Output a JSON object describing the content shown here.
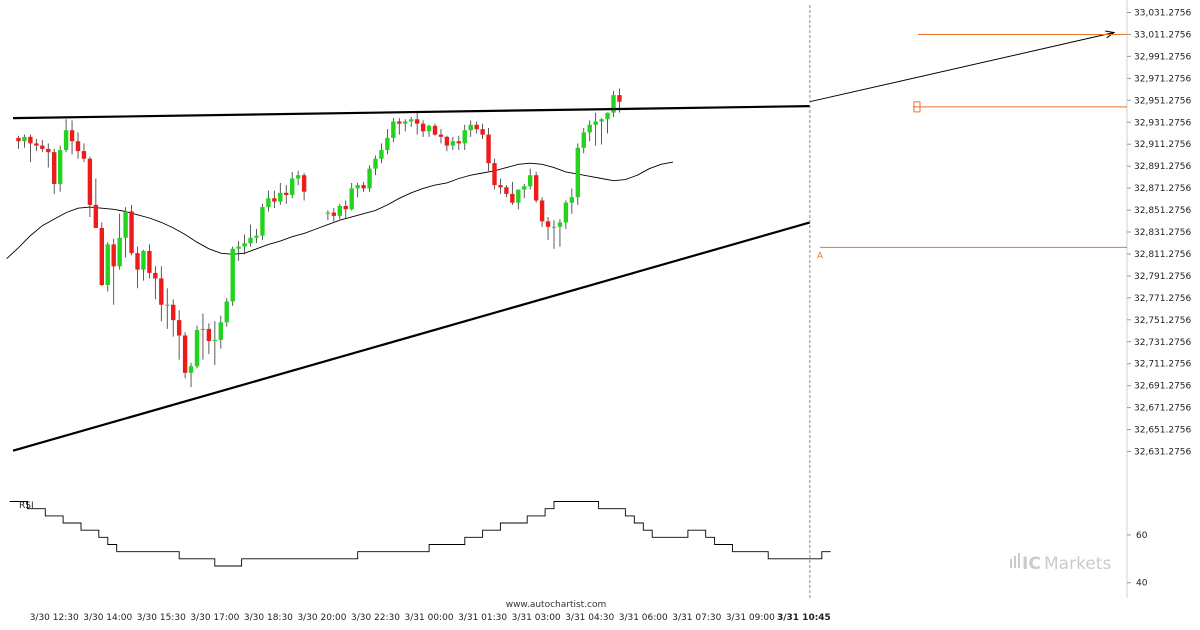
{
  "chart_data": {
    "type": "candlestick",
    "price_axis": {
      "ylim": [
        32616.2756,
        33036.2756
      ],
      "tick_labels": [
        "33,031.2756",
        "33,011.2756",
        "32,991.2756",
        "32,971.2756",
        "32,951.2756",
        "32,931.2756",
        "32,911.2756",
        "32,891.2756",
        "32,871.2756",
        "32,851.2756",
        "32,831.2756",
        "32,811.2756",
        "32,791.2756",
        "32,771.2756",
        "32,751.2756",
        "32,731.2756",
        "32,711.2756",
        "32,691.2756",
        "32,671.2756",
        "32,651.2756",
        "32,631.2756"
      ],
      "tick_values": [
        33031.2756,
        33011.2756,
        32991.2756,
        32971.2756,
        32951.2756,
        32931.2756,
        32911.2756,
        32891.2756,
        32871.2756,
        32851.2756,
        32831.2756,
        32811.2756,
        32791.2756,
        32771.2756,
        32751.2756,
        32731.2756,
        32711.2756,
        32691.2756,
        32671.2756,
        32651.2756,
        32631.2756
      ]
    },
    "time_axis": {
      "labels": [
        "3/30 12:30",
        "3/30 14:00",
        "3/30 15:30",
        "3/30 17:00",
        "3/30 18:30",
        "3/30 20:00",
        "3/30 22:30",
        "3/31 00:00",
        "3/31 01:30",
        "3/31 03:00",
        "3/31 04:30",
        "3/31 06:00",
        "3/31 07:30",
        "3/31 09:00",
        "3/31 10:45"
      ],
      "label_bar_index": [
        6,
        15,
        24,
        33,
        42,
        51,
        60,
        69,
        78,
        87,
        96,
        105,
        114,
        123,
        132
      ],
      "current_label_index": 14
    },
    "candles": [
      [
        32917,
        32919,
        32907,
        32914
      ],
      [
        32914,
        32920,
        32908,
        32918
      ],
      [
        32918,
        32920,
        32895,
        32912
      ],
      [
        32912,
        32916,
        32905,
        32910
      ],
      [
        32910,
        32915,
        32904,
        32907
      ],
      [
        32907,
        32912,
        32890,
        32904
      ],
      [
        32904,
        32907,
        32866,
        32875
      ],
      [
        32875,
        32910,
        32868,
        32906
      ],
      [
        32906,
        32934,
        32904,
        32924
      ],
      [
        32924,
        32933,
        32902,
        32914
      ],
      [
        32914,
        32922,
        32898,
        32905
      ],
      [
        32905,
        32912,
        32895,
        32898
      ],
      [
        32898,
        32900,
        32845,
        32856
      ],
      [
        32856,
        32880,
        32835,
        32835
      ],
      [
        32835,
        32840,
        32782,
        32783
      ],
      [
        32783,
        32822,
        32777,
        32820
      ],
      [
        32820,
        32825,
        32765,
        32800
      ],
      [
        32800,
        32848,
        32797,
        32826
      ],
      [
        32826,
        32854,
        32808,
        32850
      ],
      [
        32850,
        32856,
        32810,
        32812
      ],
      [
        32812,
        32818,
        32780,
        32797
      ],
      [
        32797,
        32815,
        32787,
        32814
      ],
      [
        32814,
        32820,
        32789,
        32794
      ],
      [
        32794,
        32800,
        32770,
        32789
      ],
      [
        32789,
        32800,
        32750,
        32765
      ],
      [
        32765,
        32780,
        32743,
        32765
      ],
      [
        32765,
        32770,
        32736,
        32751
      ],
      [
        32751,
        32760,
        32715,
        32737
      ],
      [
        32737,
        32740,
        32698,
        32703
      ],
      [
        32703,
        32712,
        32690,
        32709
      ],
      [
        32709,
        32746,
        32707,
        32742
      ],
      [
        32742,
        32757,
        32715,
        32743
      ],
      [
        32743,
        32748,
        32720,
        32732
      ],
      [
        32732,
        32750,
        32710,
        32733
      ],
      [
        32733,
        32755,
        32725,
        32749
      ],
      [
        32749,
        32771,
        32745,
        32768
      ],
      [
        32768,
        32818,
        32764,
        32816
      ],
      [
        32816,
        32823,
        32805,
        32818
      ],
      [
        32818,
        32829,
        32811,
        32821
      ],
      [
        32821,
        32838,
        32818,
        32826
      ],
      [
        32826,
        32834,
        32821,
        32828
      ],
      [
        32828,
        32857,
        32824,
        32854
      ],
      [
        32854,
        32869,
        32850,
        32862
      ],
      [
        32862,
        32869,
        32853,
        32859
      ],
      [
        32859,
        32876,
        32856,
        32867
      ],
      [
        32867,
        32874,
        32857,
        32865
      ],
      [
        32865,
        32886,
        32862,
        32880
      ],
      [
        32880,
        32887,
        32874,
        32883
      ],
      [
        32883,
        32885,
        32860,
        32868
      ],
      [
        32848,
        32851,
        32842,
        32849
      ],
      [
        32849,
        32853,
        32841,
        32846
      ],
      [
        32846,
        32857,
        32843,
        32855
      ],
      [
        32855,
        32860,
        32844,
        32852
      ],
      [
        32852,
        32876,
        32851,
        32871
      ],
      [
        32871,
        32876,
        32863,
        32874
      ],
      [
        32874,
        32877,
        32868,
        32871
      ],
      [
        32871,
        32892,
        32868,
        32889
      ],
      [
        32889,
        32901,
        32883,
        32898
      ],
      [
        32898,
        32912,
        32894,
        32906
      ],
      [
        32906,
        32925,
        32902,
        32917
      ],
      [
        32917,
        32935,
        32913,
        32932
      ],
      [
        32932,
        32935,
        32920,
        32930
      ],
      [
        32930,
        32934,
        32923,
        32932
      ],
      [
        32932,
        32936,
        32927,
        32934
      ],
      [
        32934,
        32940,
        32920,
        32930
      ],
      [
        32930,
        32933,
        32918,
        32923
      ],
      [
        32923,
        32929,
        32918,
        32928
      ],
      [
        32928,
        32930,
        32919,
        32920
      ],
      [
        32920,
        32925,
        32912,
        32918
      ],
      [
        32918,
        32919,
        32905,
        32910
      ],
      [
        32910,
        32918,
        32906,
        32914
      ],
      [
        32914,
        32919,
        32906,
        32912
      ],
      [
        32912,
        32929,
        32906,
        32924
      ],
      [
        32924,
        32933,
        32918,
        32929
      ],
      [
        32929,
        32932,
        32921,
        32925
      ],
      [
        32925,
        32930,
        32916,
        32920
      ],
      [
        32920,
        32926,
        32887,
        32894
      ],
      [
        32894,
        32898,
        32870,
        32874
      ],
      [
        32874,
        32880,
        32866,
        32872
      ],
      [
        32872,
        32874,
        32863,
        32866
      ],
      [
        32866,
        32877,
        32856,
        32858
      ],
      [
        32858,
        32870,
        32852,
        32870
      ],
      [
        32870,
        32875,
        32862,
        32873
      ],
      [
        32873,
        32889,
        32870,
        32883
      ],
      [
        32883,
        32886,
        32858,
        32860
      ],
      [
        32860,
        32863,
        32836,
        32841
      ],
      [
        32841,
        32845,
        32824,
        32836
      ],
      [
        32836,
        32842,
        32816,
        32836
      ],
      [
        32836,
        32843,
        32818,
        32840
      ],
      [
        32840,
        32860,
        32834,
        32858
      ],
      [
        32858,
        32871,
        32848,
        32863
      ],
      [
        32863,
        32912,
        32856,
        32908
      ],
      [
        32908,
        32926,
        32903,
        32922
      ],
      [
        32922,
        32933,
        32914,
        32929
      ],
      [
        32929,
        32940,
        32910,
        32932
      ],
      [
        32932,
        32935,
        32911,
        32934
      ],
      [
        32934,
        32940,
        32921,
        32940
      ],
      [
        32940,
        32960,
        32936,
        32956
      ],
      [
        32956,
        32962,
        32940,
        32950
      ]
    ],
    "candle_bar_index": [
      0,
      1,
      2,
      3,
      4,
      5,
      6,
      7,
      8,
      9,
      10,
      11,
      12,
      13,
      14,
      15,
      16,
      17,
      18,
      19,
      20,
      21,
      22,
      23,
      24,
      25,
      26,
      27,
      28,
      29,
      30,
      31,
      32,
      33,
      34,
      35,
      36,
      37,
      38,
      39,
      40,
      41,
      42,
      43,
      44,
      45,
      46,
      47,
      48,
      52,
      53,
      54,
      55,
      56,
      57,
      58,
      59,
      60,
      61,
      62,
      63,
      64,
      65,
      66,
      67,
      68,
      69,
      70,
      71,
      72,
      73,
      74,
      75,
      76,
      77,
      78,
      79,
      80,
      81,
      82,
      83,
      84,
      85,
      86,
      87,
      88,
      89,
      90,
      91,
      92,
      93,
      94,
      95,
      96,
      97,
      98,
      99,
      100,
      101
    ],
    "moving_average": [
      32807,
      32817,
      32828,
      32837,
      32843,
      32849,
      32853,
      32854,
      32853,
      32852,
      32850,
      32847,
      32844,
      32840,
      32835,
      32829,
      32822,
      32816,
      32812,
      32811,
      32812,
      32816,
      32820,
      32823,
      32827,
      32830,
      32834,
      32838,
      32842,
      32845,
      32848,
      32851,
      32856,
      32862,
      32867,
      32871,
      32874,
      32876,
      32880,
      32883,
      32885,
      32887,
      32890,
      32893,
      32894,
      32893,
      32890,
      32886,
      32884,
      32882,
      32880,
      32878,
      32879,
      32883,
      32889,
      32893,
      32895
    ],
    "rsi": {
      "title": "RSI",
      "tick_labels": [
        "60",
        "40"
      ],
      "tick_values": [
        60,
        40
      ],
      "ylim": [
        34,
        78
      ],
      "values": [
        74,
        74,
        71,
        71,
        68,
        68,
        65,
        65,
        62,
        62,
        59,
        56,
        53,
        53,
        53,
        53,
        53,
        53,
        53,
        50,
        50,
        50,
        50,
        47,
        47,
        47,
        50,
        50,
        50,
        50,
        50,
        50,
        50,
        50,
        50,
        50,
        50,
        50,
        50,
        53,
        53,
        53,
        53,
        53,
        53,
        53,
        53,
        56,
        56,
        56,
        56,
        59,
        59,
        62,
        62,
        65,
        65,
        65,
        68,
        68,
        71,
        74,
        74,
        74,
        74,
        74,
        71,
        71,
        71,
        68,
        65,
        62,
        59,
        59,
        59,
        59,
        62,
        62,
        59,
        56,
        56,
        53,
        53,
        53,
        53,
        50,
        50,
        50,
        50,
        50,
        50,
        53
      ]
    },
    "annotations": {
      "pattern_label": "A",
      "watermark": "www.autochartist.com",
      "brand": {
        "bold": "IC",
        "regular": "Markets"
      },
      "colors": {
        "bull": "#22d41f",
        "bear": "#ee1b1b",
        "level_line": "#e8742c",
        "trend_line": "#000000",
        "target_arrow": "#000000",
        "current_time_line": "#888888"
      }
    },
    "levels": {
      "target": 33011.2756,
      "breakout": 32945.2756,
      "support_A": 32817.2756
    },
    "trend_lines": {
      "resistance": [
        [
          0,
          32935
        ],
        [
          133,
          32946
        ]
      ],
      "support": [
        [
          0,
          32632
        ],
        [
          133,
          32840
        ]
      ],
      "forecast_arrow": [
        [
          133,
          32950
        ],
        [
          150,
          33013
        ]
      ]
    }
  }
}
